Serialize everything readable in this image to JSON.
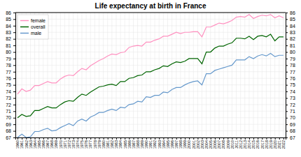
{
  "chart_data": {
    "type": "line",
    "title": "Life expectancy at birth in France",
    "x": [
      1960,
      1961,
      1962,
      1963,
      1964,
      1965,
      1966,
      1967,
      1968,
      1969,
      1970,
      1971,
      1972,
      1973,
      1974,
      1975,
      1976,
      1977,
      1978,
      1979,
      1980,
      1981,
      1982,
      1983,
      1984,
      1985,
      1986,
      1987,
      1988,
      1989,
      1990,
      1991,
      1992,
      1993,
      1994,
      1995,
      1996,
      1997,
      1998,
      1999,
      2000,
      2001,
      2002,
      2003,
      2004,
      2005,
      2006,
      2007,
      2008,
      2009,
      2010,
      2011,
      2012,
      2013,
      2014,
      2015,
      2016,
      2017,
      2018,
      2019,
      2020,
      2021,
      2022
    ],
    "series": [
      {
        "name": "female",
        "color": "#ff91c0",
        "values": [
          73.6,
          74.4,
          74.0,
          74.2,
          74.9,
          74.9,
          75.2,
          75.5,
          75.3,
          75.3,
          75.9,
          76.3,
          76.5,
          76.4,
          77.0,
          77.5,
          77.3,
          77.9,
          78.3,
          78.7,
          79.0,
          79.4,
          79.7,
          79.6,
          79.9,
          80.0,
          80.7,
          80.9,
          81.0,
          80.9,
          81.5,
          81.5,
          81.8,
          82.0,
          82.4,
          82.4,
          82.7,
          83.0,
          82.8,
          83.0,
          83.0,
          83.1,
          83.1,
          82.3,
          83.8,
          83.8,
          84.1,
          84.4,
          84.3,
          84.5,
          84.8,
          85.3,
          85.4,
          85.3,
          85.7,
          85.1,
          85.4,
          85.6,
          85.5,
          85.7,
          85.2,
          85.5,
          85.2
        ]
      },
      {
        "name": "overall",
        "color": "#006400",
        "values": [
          70.0,
          70.5,
          70.2,
          70.3,
          71.1,
          71.1,
          71.4,
          71.7,
          71.5,
          71.5,
          72.0,
          72.4,
          72.6,
          72.5,
          73.1,
          73.6,
          73.4,
          73.9,
          74.3,
          74.7,
          74.8,
          75.0,
          75.1,
          74.9,
          75.5,
          75.5,
          76.0,
          76.1,
          76.4,
          76.5,
          77.0,
          77.0,
          77.3,
          77.5,
          77.9,
          77.8,
          78.2,
          78.5,
          78.4,
          78.6,
          79.0,
          79.0,
          79.0,
          78.2,
          80.0,
          80.0,
          80.6,
          80.9,
          80.9,
          81.2,
          81.4,
          82.1,
          82.1,
          82.0,
          82.4,
          81.9,
          82.4,
          82.5,
          82.3,
          82.7,
          81.7,
          82.3,
          82.3
        ]
      },
      {
        "name": "male",
        "color": "#6699cc",
        "values": [
          67.0,
          67.5,
          67.0,
          67.1,
          67.9,
          67.9,
          68.2,
          68.4,
          68.0,
          68.1,
          68.5,
          68.8,
          69.1,
          68.8,
          69.5,
          69.8,
          69.5,
          70.1,
          70.4,
          70.8,
          70.8,
          71.1,
          71.3,
          71.1,
          71.6,
          71.5,
          72.0,
          72.1,
          72.5,
          72.4,
          73.2,
          73.1,
          73.4,
          73.4,
          73.9,
          73.8,
          74.3,
          74.6,
          74.6,
          75.0,
          75.3,
          75.5,
          75.6,
          75.0,
          76.7,
          76.7,
          77.2,
          77.4,
          77.6,
          77.8,
          78.0,
          78.8,
          78.8,
          78.8,
          79.3,
          79.0,
          79.4,
          79.6,
          79.4,
          79.8,
          79.3,
          79.5,
          79.5
        ]
      }
    ],
    "xlim": [
      1959.5,
      2022.5
    ],
    "xticks": [
      1960,
      1961,
      1962,
      1963,
      1964,
      1965,
      1966,
      1967,
      1968,
      1969,
      1970,
      1971,
      1972,
      1973,
      1974,
      1975,
      1976,
      1977,
      1978,
      1979,
      1980,
      1981,
      1982,
      1983,
      1984,
      1985,
      1986,
      1987,
      1988,
      1989,
      1990,
      1991,
      1992,
      1993,
      1994,
      1995,
      1996,
      1997,
      1998,
      1999,
      2000,
      2001,
      2002,
      2003,
      2004,
      2005,
      2006,
      2007,
      2008,
      2009,
      2010,
      2011,
      2012,
      2013,
      2014,
      2015,
      2016,
      2017,
      2018,
      2019,
      2020,
      2021,
      2022
    ],
    "ylim": [
      67,
      86
    ],
    "yticks": [
      67,
      68,
      69,
      70,
      71,
      72,
      73,
      74,
      75,
      76,
      77,
      78,
      79,
      80,
      81,
      82,
      83,
      84,
      85,
      86
    ],
    "y2lim": [
      67,
      86
    ],
    "y2ticks": [
      67,
      68,
      69,
      70,
      71,
      72,
      73,
      74,
      75,
      76,
      77,
      78,
      79,
      80,
      81,
      82,
      83,
      84,
      85,
      86
    ],
    "grid": true,
    "legend": "upper left"
  }
}
